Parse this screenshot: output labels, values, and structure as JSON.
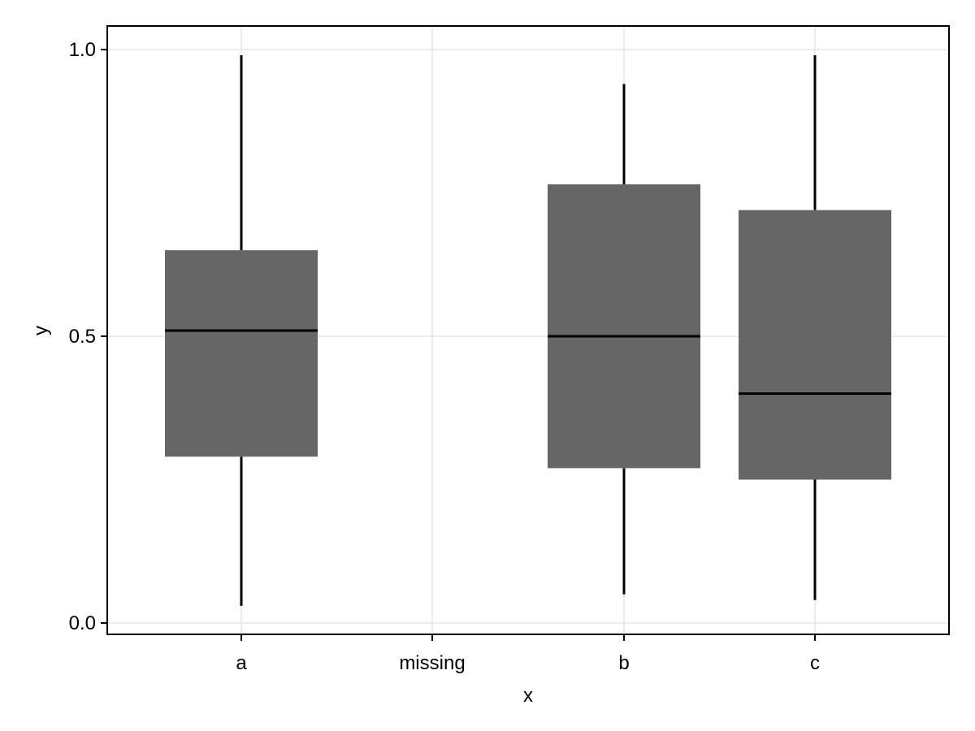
{
  "chart_data": {
    "type": "boxplot",
    "title": "",
    "xlabel": "x",
    "ylabel": "y",
    "categories": [
      "a",
      "missing",
      "b",
      "c"
    ],
    "ylim": [
      -0.02,
      1.04
    ],
    "yticks": [
      0.0,
      0.5,
      1.0
    ],
    "ytick_labels": [
      "0.0",
      "0.5",
      "1.0"
    ],
    "grid": true,
    "legend": "none",
    "box_color": "#666666",
    "boxes": [
      {
        "category": "a",
        "min": 0.03,
        "q1": 0.29,
        "median": 0.51,
        "q3": 0.65,
        "max": 0.99
      },
      {
        "category": "b",
        "min": 0.05,
        "q1": 0.27,
        "median": 0.5,
        "q3": 0.765,
        "max": 0.94
      },
      {
        "category": "c",
        "min": 0.04,
        "q1": 0.25,
        "median": 0.4,
        "q3": 0.72,
        "max": 0.99
      }
    ]
  }
}
